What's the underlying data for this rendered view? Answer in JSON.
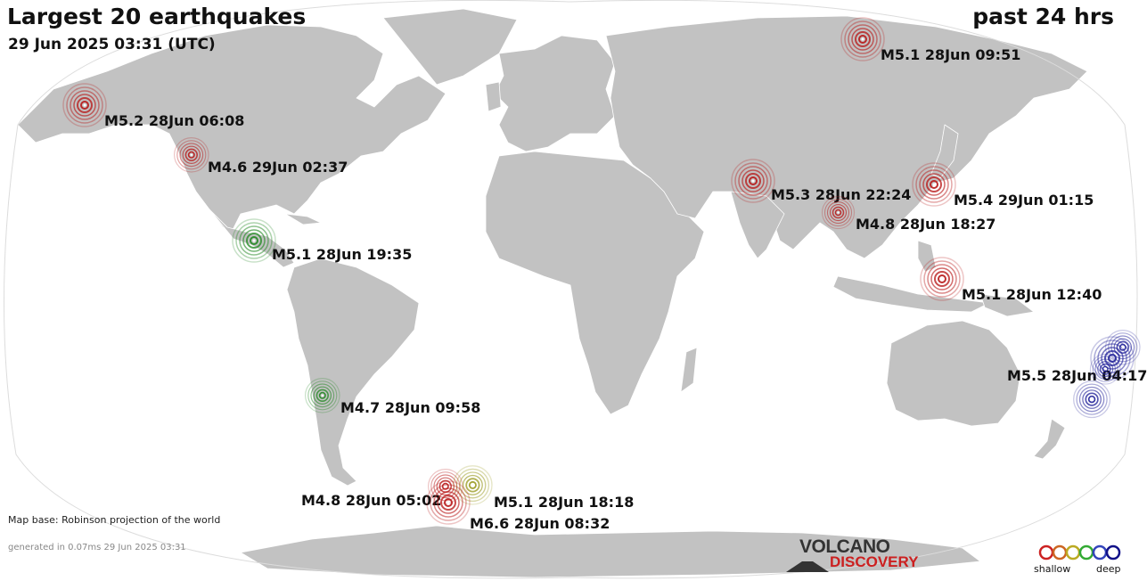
{
  "header": {
    "title": "Largest 20 earthquakes",
    "date": "29 Jun 2025 03:31 (UTC)",
    "period": "past 24 hrs"
  },
  "footer": {
    "mapbase": "Map base: Robinson projection of the world",
    "generated": "generated in 0.07ms 29 Jun 2025 03:31"
  },
  "logo": {
    "top": "VOLCANO",
    "bottom": "DISCOVERY"
  },
  "legend": {
    "shallow": "shallow",
    "deep": "deep",
    "colors": [
      "#cc2222",
      "#cc6622",
      "#bbaa22",
      "#33aa33",
      "#3344bb",
      "#111188"
    ]
  },
  "colors": {
    "land": "#c2c2c2",
    "ocean": "#ffffff",
    "shallow": "#b81818",
    "intermediate": "#9a9a22",
    "mid": "#228822",
    "deep": "#222299"
  },
  "earthquakes": [
    {
      "label": "M5.1 28Jun 09:51",
      "depth": "shallow"
    },
    {
      "label": "M5.2 28Jun 06:08",
      "depth": "shallow"
    },
    {
      "label": "M4.6 29Jun 02:37",
      "depth": "shallow"
    },
    {
      "label": "M5.3 28Jun 22:24",
      "depth": "shallow"
    },
    {
      "label": "M5.4 29Jun 01:15",
      "depth": "shallow"
    },
    {
      "label": "M4.8 28Jun 18:27",
      "depth": "shallow"
    },
    {
      "label": "M5.1 28Jun 19:35",
      "depth": "mid"
    },
    {
      "label": "M5.1 28Jun 12:40",
      "depth": "shallow"
    },
    {
      "label": "M5.5 28Jun 04:17",
      "depth": "deep"
    },
    {
      "label": "M4.7 28Jun 09:58",
      "depth": "mid"
    },
    {
      "label": "M4.8 28Jun 05:02",
      "depth": "shallow"
    },
    {
      "label": "M5.1 28Jun 18:18",
      "depth": "intermediate"
    },
    {
      "label": "M6.6 28Jun 08:32",
      "depth": "shallow"
    },
    {
      "label": "",
      "depth": "deep"
    },
    {
      "label": "",
      "depth": "deep"
    },
    {
      "label": "",
      "depth": "deep"
    }
  ]
}
